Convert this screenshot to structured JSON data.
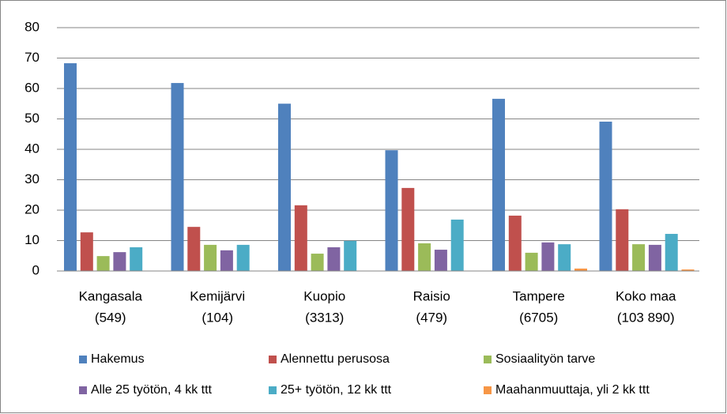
{
  "chart_data": {
    "type": "bar",
    "categories": [
      [
        "Kangasala",
        "(549)"
      ],
      [
        "Kemijärvi",
        "(104)"
      ],
      [
        "Kuopio",
        "(3313)"
      ],
      [
        "Raisio",
        "(479)"
      ],
      [
        "Tampere",
        "(6705)"
      ],
      [
        "Koko maa",
        "(103 890)"
      ]
    ],
    "series": [
      {
        "name": "Hakemus",
        "color": "#4f81bd",
        "values": [
          68.3,
          61.8,
          55.0,
          39.7,
          56.6,
          49.1
        ]
      },
      {
        "name": "Alennettu perusosa",
        "color": "#c0504d",
        "values": [
          12.7,
          14.5,
          21.6,
          27.3,
          18.2,
          20.3
        ]
      },
      {
        "name": "Sosiaalityön tarve",
        "color": "#9bbb59",
        "values": [
          4.9,
          8.6,
          5.7,
          9.1,
          6.0,
          8.8
        ]
      },
      {
        "name": "Alle 25 työtön, 4 kk ttt",
        "color": "#8064a2",
        "values": [
          6.2,
          6.8,
          7.8,
          7.0,
          9.4,
          8.6
        ]
      },
      {
        "name": "25+ työtön, 12 kk ttt",
        "color": "#4bacc6",
        "values": [
          7.8,
          8.6,
          9.9,
          16.9,
          8.8,
          12.2
        ]
      },
      {
        "name": "Maahanmuuttaja, yli 2 kk ttt",
        "color": "#f79646",
        "values": [
          0,
          0,
          0,
          0,
          0.8,
          0.5
        ]
      }
    ],
    "ylim": [
      0,
      80
    ],
    "yticks": [
      0,
      10,
      20,
      30,
      40,
      50,
      60,
      70,
      80
    ],
    "grid": true,
    "legend": "bottom"
  }
}
